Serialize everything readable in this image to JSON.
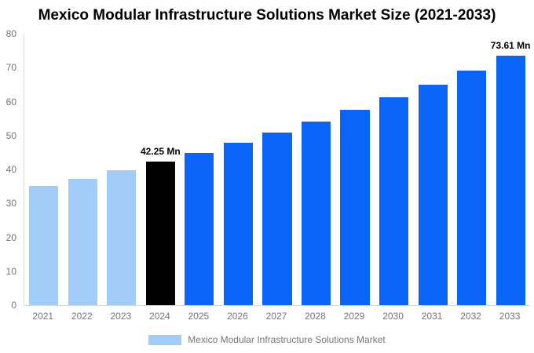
{
  "chart_data": {
    "type": "bar",
    "title": "Mexico Modular Infrastructure Solutions Market Size (2021-2033)",
    "xlabel": "",
    "ylabel": "",
    "categories": [
      "2021",
      "2022",
      "2023",
      "2024",
      "2025",
      "2026",
      "2027",
      "2028",
      "2029",
      "2030",
      "2031",
      "2032",
      "2033"
    ],
    "values": [
      35.1,
      37.33,
      39.72,
      42.25,
      44.94,
      47.8,
      50.84,
      54.07,
      57.51,
      61.17,
      65.06,
      69.2,
      73.61
    ],
    "bar_colors": [
      "#a2ccfa",
      "#a2ccfa",
      "#a2ccfa",
      "#000000",
      "#0a64f8",
      "#0a64f8",
      "#0a64f8",
      "#0a64f8",
      "#0a64f8",
      "#0a64f8",
      "#0a64f8",
      "#0a64f8",
      "#0a64f8"
    ],
    "value_labels": [
      {
        "index": 3,
        "text": "42.25 Mn"
      },
      {
        "index": 12,
        "text": "73.61 Mn"
      }
    ],
    "ylim": [
      0,
      80
    ],
    "yticks": [
      "0",
      "10",
      "20",
      "30",
      "40",
      "50",
      "60",
      "70",
      "80"
    ],
    "grid": false,
    "legend": {
      "label": "Mexico Modular Infrastructure Solutions Market",
      "swatch_color": "#a2ccfa",
      "position": "bottom-center"
    },
    "colors": {
      "historical_bar": "#a2ccfa",
      "highlight_bar": "#000000",
      "forecast_bar": "#0a64f8",
      "axis_line": "#d9d9d9",
      "tick_label": "#757575",
      "title": "#000000"
    }
  }
}
